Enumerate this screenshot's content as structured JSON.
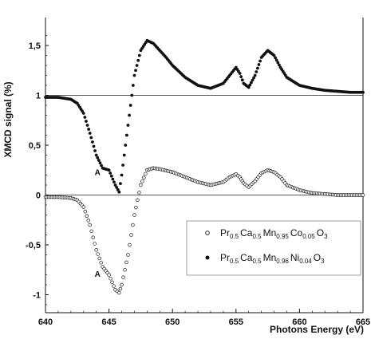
{
  "chart_data": {
    "type": "scatter",
    "xlabel": "Photons Energy (eV)",
    "ylabel": "XMCD signal (%)",
    "xlim": [
      640,
      665
    ],
    "ylim": [
      -1.18,
      1.78
    ],
    "xticks": [
      "640",
      "645",
      "650",
      "655",
      "660",
      "665"
    ],
    "yticks": [
      "1,5",
      "1",
      "0,5",
      "0",
      "-0,5",
      "-1"
    ],
    "ytick_values": [
      1.5,
      1.0,
      0.5,
      0.0,
      -0.5,
      -1.0
    ],
    "reference_lines": [
      1.0,
      0.0
    ],
    "legend_position": "bottom-right",
    "annotations": [
      {
        "text": "A",
        "x": 644.1,
        "y": 0.2
      },
      {
        "text": "A",
        "x": 644.1,
        "y": -0.82
      }
    ],
    "legend": {
      "series_0": {
        "main": [
          "Pr",
          "0.5",
          "Ca",
          "0.5",
          "Mn",
          "0.95",
          "Co",
          "0.05",
          "O",
          "3"
        ]
      },
      "series_1": {
        "main": [
          "Pr",
          "0.5",
          "Ca",
          "0.5",
          "Mn",
          "0.96",
          "Ni",
          "0.04",
          "O",
          "3"
        ]
      }
    },
    "series": [
      {
        "marker": "open-circle",
        "points": [
          [
            640.0,
            -0.02
          ],
          [
            641.0,
            -0.02
          ],
          [
            642.0,
            -0.03
          ],
          [
            642.5,
            -0.05
          ],
          [
            643.0,
            -0.12
          ],
          [
            643.5,
            -0.3
          ],
          [
            644.0,
            -0.55
          ],
          [
            644.5,
            -0.72
          ],
          [
            645.0,
            -0.8
          ],
          [
            645.5,
            -0.95
          ],
          [
            645.8,
            -0.98
          ],
          [
            646.0,
            -0.9
          ],
          [
            646.5,
            -0.6
          ],
          [
            647.0,
            -0.2
          ],
          [
            647.5,
            0.1
          ],
          [
            648.0,
            0.25
          ],
          [
            648.5,
            0.27
          ],
          [
            649.0,
            0.26
          ],
          [
            650.0,
            0.23
          ],
          [
            651.0,
            0.18
          ],
          [
            652.0,
            0.13
          ],
          [
            653.0,
            0.1
          ],
          [
            654.0,
            0.13
          ],
          [
            654.5,
            0.18
          ],
          [
            655.0,
            0.21
          ],
          [
            655.3,
            0.18
          ],
          [
            655.6,
            0.12
          ],
          [
            656.0,
            0.08
          ],
          [
            656.5,
            0.14
          ],
          [
            657.0,
            0.22
          ],
          [
            657.5,
            0.25
          ],
          [
            658.0,
            0.23
          ],
          [
            658.5,
            0.18
          ],
          [
            659.0,
            0.1
          ],
          [
            660.0,
            0.05
          ],
          [
            661.0,
            0.02
          ],
          [
            662.0,
            0.01
          ],
          [
            663.0,
            0.0
          ],
          [
            664.0,
            0.0
          ],
          [
            665.0,
            0.0
          ]
        ]
      },
      {
        "marker": "filled-circle",
        "points": [
          [
            640.0,
            0.98
          ],
          [
            641.0,
            0.98
          ],
          [
            642.0,
            0.96
          ],
          [
            642.5,
            0.92
          ],
          [
            643.0,
            0.82
          ],
          [
            643.5,
            0.62
          ],
          [
            644.0,
            0.4
          ],
          [
            644.5,
            0.27
          ],
          [
            645.0,
            0.25
          ],
          [
            645.5,
            0.1
          ],
          [
            645.8,
            0.03
          ],
          [
            646.0,
            0.2
          ],
          [
            646.5,
            0.7
          ],
          [
            647.0,
            1.2
          ],
          [
            647.5,
            1.45
          ],
          [
            648.0,
            1.55
          ],
          [
            648.5,
            1.52
          ],
          [
            649.0,
            1.45
          ],
          [
            649.5,
            1.38
          ],
          [
            650.0,
            1.3
          ],
          [
            651.0,
            1.18
          ],
          [
            652.0,
            1.1
          ],
          [
            653.0,
            1.07
          ],
          [
            654.0,
            1.12
          ],
          [
            654.5,
            1.2
          ],
          [
            655.0,
            1.28
          ],
          [
            655.3,
            1.22
          ],
          [
            655.6,
            1.12
          ],
          [
            656.0,
            1.08
          ],
          [
            656.5,
            1.2
          ],
          [
            657.0,
            1.38
          ],
          [
            657.5,
            1.45
          ],
          [
            658.0,
            1.4
          ],
          [
            658.5,
            1.28
          ],
          [
            659.0,
            1.18
          ],
          [
            660.0,
            1.1
          ],
          [
            661.0,
            1.07
          ],
          [
            662.0,
            1.05
          ],
          [
            663.0,
            1.04
          ],
          [
            664.0,
            1.03
          ],
          [
            665.0,
            1.03
          ]
        ]
      }
    ]
  }
}
